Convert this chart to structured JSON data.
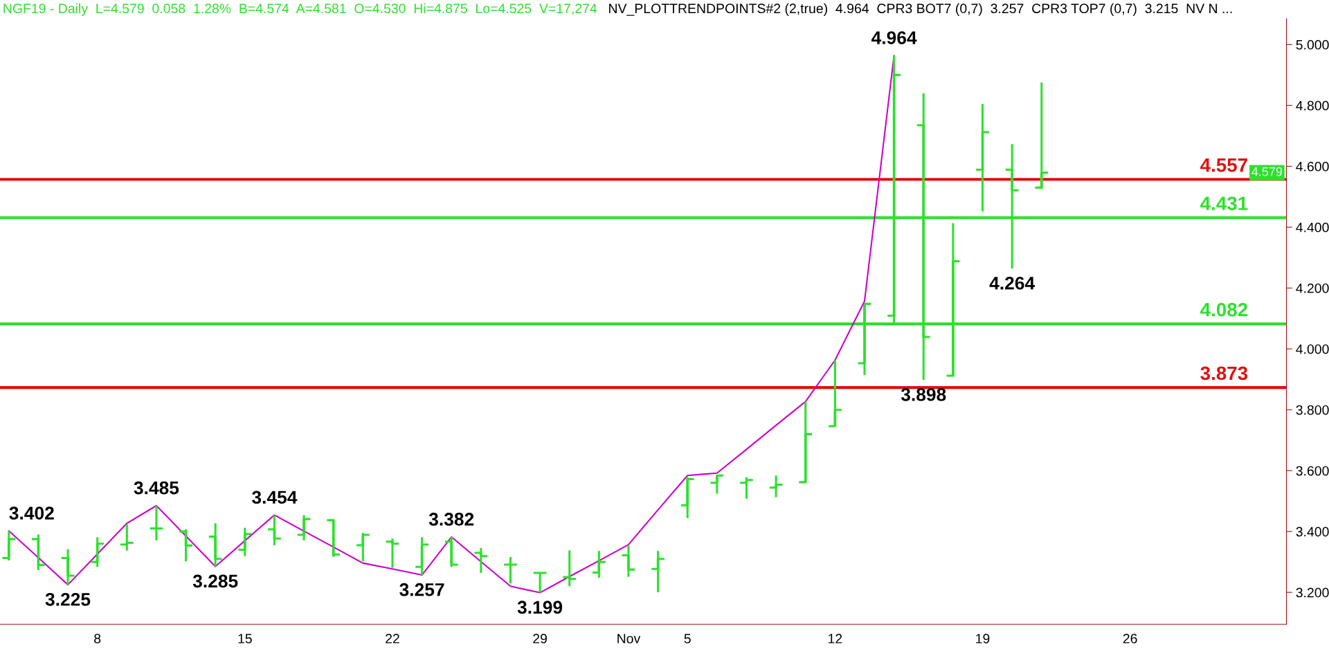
{
  "chart_data": {
    "type": "candlestick",
    "title": "NGF19 - Daily  L=4.579  0.058  1.28%  B=4.574  A=4.581  O=4.530  Hi=4.875  Lo=4.525  V=17,274",
    "subtitle": "NV_PLOTTRENDPOINTS#2 (2,true)  4.964  CPR3 BOT7 (0,7)  3.257  CPR3 TOP7 (0,7)  3.215  NV N ...",
    "categories": [
      null,
      null,
      null,
      "8",
      null,
      null,
      null,
      null,
      "15",
      null,
      null,
      null,
      null,
      "22",
      null,
      null,
      null,
      null,
      "29",
      null,
      null,
      "Nov",
      null,
      "5",
      null,
      null,
      null,
      null,
      "12",
      null,
      null,
      null,
      null,
      "19",
      null,
      null,
      null,
      null,
      "26",
      null,
      null,
      null,
      null,
      null
    ],
    "ohlc": [
      [
        3.313,
        3.402,
        3.305,
        3.375
      ],
      [
        3.375,
        3.39,
        3.273,
        3.29
      ],
      [
        3.313,
        3.342,
        3.225,
        3.255
      ],
      [
        3.3,
        3.381,
        3.284,
        3.36
      ],
      [
        3.357,
        3.424,
        3.337,
        3.363
      ],
      [
        3.41,
        3.485,
        3.371,
        3.41
      ],
      [
        3.4,
        3.407,
        3.302,
        3.354
      ],
      [
        3.383,
        3.427,
        3.285,
        3.31
      ],
      [
        3.34,
        3.412,
        3.319,
        3.392
      ],
      [
        3.407,
        3.454,
        3.355,
        3.377
      ],
      [
        3.389,
        3.454,
        3.371,
        3.441
      ],
      [
        3.437,
        3.439,
        3.316,
        3.324
      ],
      [
        3.355,
        3.396,
        3.302,
        3.389
      ],
      [
        3.367,
        3.377,
        3.281,
        3.36
      ],
      [
        3.284,
        3.381,
        3.257,
        3.357
      ],
      [
        3.367,
        3.382,
        3.283,
        3.291
      ],
      [
        3.33,
        3.346,
        3.264,
        3.319
      ],
      [
        3.291,
        3.316,
        3.229,
        3.291
      ],
      [
        3.264,
        3.264,
        3.199,
        3.264
      ],
      [
        3.25,
        3.338,
        3.22,
        3.244
      ],
      [
        3.265,
        3.336,
        3.248,
        3.3
      ],
      [
        3.322,
        3.354,
        3.251,
        3.275
      ],
      [
        3.277,
        3.336,
        3.2,
        3.31
      ],
      [
        3.486,
        3.578,
        3.444,
        3.572
      ],
      [
        3.56,
        3.586,
        3.524,
        3.584
      ],
      [
        3.56,
        3.578,
        3.508,
        3.569
      ],
      [
        3.544,
        3.584,
        3.513,
        3.554
      ],
      [
        3.562,
        3.827,
        3.56,
        3.72
      ],
      [
        3.746,
        3.963,
        3.744,
        3.8
      ],
      [
        3.953,
        4.149,
        3.914,
        4.148
      ],
      [
        4.109,
        4.964,
        4.083,
        4.9
      ],
      [
        4.735,
        4.84,
        3.898,
        4.039
      ],
      [
        3.912,
        4.413,
        3.912,
        4.288
      ],
      [
        4.589,
        4.805,
        4.452,
        4.712
      ],
      [
        4.589,
        4.673,
        4.264,
        4.521
      ],
      [
        4.53,
        4.875,
        4.525,
        4.579
      ],
      null,
      null,
      null,
      null,
      null,
      null,
      null,
      null
    ],
    "color": "#2ee02e",
    "value_labels": [
      null,
      null,
      null,
      null,
      null,
      null,
      null,
      null,
      null,
      null,
      null,
      null,
      null,
      null,
      null,
      null,
      null,
      null,
      null,
      null,
      null,
      null,
      null,
      null,
      null,
      null,
      null,
      null,
      null,
      null,
      null,
      "3.898",
      null,
      null,
      "4.264",
      null,
      null,
      null,
      null,
      null,
      null,
      null,
      null,
      null
    ],
    "series": [
      {
        "type": "line",
        "color": "#cc00cc",
        "values": [
          3.402,
          3.314,
          3.225,
          3.326,
          3.427,
          3.485,
          3.385,
          3.285,
          3.37,
          3.454,
          3.401,
          3.349,
          3.296,
          3.277,
          3.257,
          3.382,
          3.301,
          3.22,
          3.199,
          3.252,
          3.304,
          3.357,
          3.471,
          3.584,
          3.592,
          3.67,
          3.749,
          3.827,
          3.963,
          4.157,
          4.964,
          null,
          null,
          null,
          null,
          null,
          null,
          null,
          null,
          null,
          null,
          null,
          null,
          null
        ],
        "value_labels": [
          "3.402",
          null,
          "3.225",
          null,
          null,
          "3.485",
          null,
          "3.285",
          null,
          "3.454",
          null,
          null,
          null,
          null,
          "3.257",
          "3.382",
          null,
          null,
          "3.199",
          null,
          null,
          null,
          null,
          null,
          null,
          null,
          null,
          null,
          null,
          null,
          "4.964",
          null,
          null,
          null,
          null,
          null,
          null,
          null,
          null,
          null,
          null,
          null,
          null,
          null
        ]
      }
    ],
    "ylim": [
      3.095,
      5.085
    ],
    "yticks": [
      {
        "value": 3.2,
        "label": "3.200"
      },
      {
        "value": 3.4,
        "label": "3.400"
      },
      {
        "value": 3.6,
        "label": "3.600"
      },
      {
        "value": 3.8,
        "label": "3.800"
      },
      {
        "value": 4.0,
        "label": "4.000"
      },
      {
        "value": 4.2,
        "label": "4.200"
      },
      {
        "value": 4.4,
        "label": "4.400"
      },
      {
        "value": 4.6,
        "label": "4.600"
      },
      {
        "value": 4.8,
        "label": "4.800"
      },
      {
        "value": 5.0,
        "label": "5.000"
      }
    ],
    "ref_lines": [
      {
        "axis": "y",
        "value": 4.557,
        "label": "4.557",
        "color": "#e01010"
      },
      {
        "axis": "y",
        "value": 4.431,
        "label": "4.431",
        "color": "#2ee02e"
      },
      {
        "axis": "y",
        "value": 4.082,
        "label": "4.082",
        "color": "#2ee02e"
      },
      {
        "axis": "y",
        "value": 3.873,
        "label": "3.873",
        "color": "#e01010"
      }
    ],
    "annotations": [
      "4.579"
    ],
    "grid": false,
    "legend": false
  }
}
